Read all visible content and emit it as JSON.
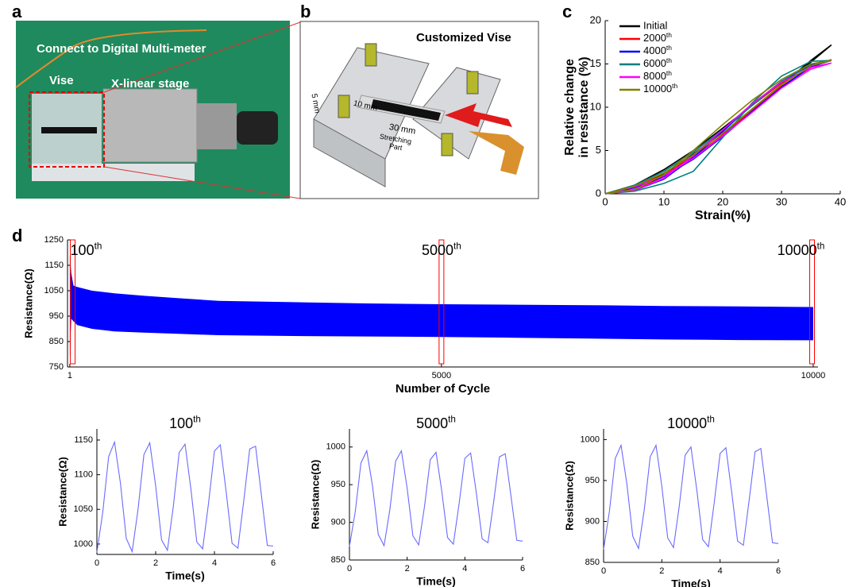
{
  "figure": {
    "panel_a": "a",
    "panel_b": "b",
    "panel_c": "c",
    "panel_d": "d",
    "photo_caption": "Connect to Digital Multi-meter",
    "vise": "Vise",
    "stage": "X-linear stage",
    "vise_title": "Customized Vise",
    "dim_5": "5 mm",
    "dim_10": "10 mm",
    "dim_30": "30 mm",
    "stretch_1": "Stretching",
    "stretch_2": "Part"
  },
  "chart_data": [
    {
      "type": "line",
      "xlabel": "Strain(%)",
      "ylabel": [
        "Relative change",
        "in resistance (%)"
      ],
      "x": [
        0,
        5,
        10,
        15,
        20,
        25,
        30,
        35,
        38.5,
        35,
        30,
        25,
        20,
        15,
        10,
        5,
        0
      ],
      "xlim": [
        0,
        40
      ],
      "xticks": [
        0,
        10,
        20,
        30,
        40
      ],
      "ylim": [
        0,
        20
      ],
      "yticks": [
        0,
        5,
        10,
        15,
        20
      ],
      "legend": "top-left",
      "series": [
        {
          "name": "Initial",
          "color": "#000000",
          "values": [
            0,
            0.7,
            2.3,
            4.6,
            7.0,
            9.8,
            12.6,
            15.4,
            17.2,
            15.2,
            12.8,
            10.2,
            7.6,
            5.0,
            2.8,
            1.0,
            0
          ]
        },
        {
          "name": "2000th",
          "color": "#ff0000",
          "values": [
            0,
            0.5,
            2.0,
            4.5,
            7.3,
            10.2,
            12.8,
            14.6,
            15.5,
            14.6,
            12.4,
            9.6,
            6.8,
            4.2,
            2.2,
            0.8,
            0
          ]
        },
        {
          "name": "4000th",
          "color": "#0000ff",
          "values": [
            0,
            0.4,
            1.7,
            4.2,
            7.2,
            10.3,
            13.0,
            14.9,
            15.4,
            14.7,
            12.3,
            9.5,
            6.6,
            4.0,
            2.0,
            0.7,
            0
          ]
        },
        {
          "name": "6000th",
          "color": "#008080",
          "values": [
            0,
            0.3,
            1.2,
            2.6,
            6.5,
            10.5,
            13.6,
            15.3,
            15.4,
            15.0,
            13.0,
            10.2,
            7.4,
            4.8,
            2.6,
            1.0,
            0
          ]
        },
        {
          "name": "8000th",
          "color": "#ff00ff",
          "values": [
            0,
            0.4,
            1.8,
            4.4,
            7.4,
            10.4,
            12.9,
            14.6,
            15.1,
            14.4,
            12.2,
            9.4,
            6.7,
            4.1,
            2.1,
            0.8,
            0
          ]
        },
        {
          "name": "10000th",
          "color": "#808000",
          "values": [
            0,
            0.5,
            2.2,
            5.0,
            8.0,
            10.8,
            13.2,
            15.0,
            15.4,
            14.8,
            12.6,
            9.8,
            7.0,
            4.5,
            2.4,
            0.9,
            0
          ]
        }
      ]
    },
    {
      "type": "band",
      "xlabel": "Number of Cycle",
      "ylabel": "Resistance(Ω)",
      "color": "#0000ff",
      "x": [
        1,
        20,
        50,
        100,
        300,
        600,
        1000,
        1500,
        2000,
        3000,
        4000,
        5000,
        6000,
        7000,
        8000,
        9000,
        10000
      ],
      "high": [
        1190,
        1120,
        1070,
        1065,
        1050,
        1040,
        1030,
        1020,
        1010,
        1005,
        1000,
        997,
        995,
        993,
        990,
        988,
        986
      ],
      "low": [
        790,
        940,
        930,
        915,
        900,
        890,
        885,
        880,
        875,
        872,
        870,
        868,
        865,
        862,
        858,
        856,
        855
      ],
      "xlim": [
        -30,
        10065
      ],
      "xticks": [
        1,
        5000,
        10000
      ],
      "ylim": [
        750,
        1250
      ],
      "yticks": [
        750,
        850,
        950,
        1050,
        1150,
        1250
      ],
      "annotations": [
        {
          "text": "100th",
          "x": 40
        },
        {
          "text": "5000th",
          "x": 5000
        },
        {
          "text": "10000th",
          "x": 9985
        }
      ],
      "annotation_color": "#ff0000"
    },
    {
      "type": "line",
      "title": "100th",
      "xlabel": "Time(s)",
      "ylabel": "Resistance(Ω)",
      "x": [
        0,
        0.2,
        0.4,
        0.6,
        0.8,
        1.0,
        1.2,
        1.4,
        1.6,
        1.8,
        2.0,
        2.2,
        2.4,
        2.6,
        2.8,
        3.0,
        3.2,
        3.4,
        3.6,
        3.8,
        4.0,
        4.2,
        4.4,
        4.6,
        4.8,
        5.0,
        5.2,
        5.4,
        5.6,
        5.8,
        6.0
      ],
      "xlim": [
        0,
        6
      ],
      "xticks": [
        0,
        2,
        4,
        6
      ],
      "ylim": [
        985,
        1166
      ],
      "yticks": [
        1000,
        1050,
        1100,
        1150
      ],
      "series": [
        {
          "color": "#6a6aff",
          "values": [
            988,
            1046,
            1126,
            1147,
            1088,
            1008,
            989,
            1050,
            1129,
            1146,
            1084,
            1006,
            991,
            1054,
            1132,
            1144,
            1079,
            1003,
            993,
            1059,
            1134,
            1143,
            1075,
            1001,
            994,
            1063,
            1137,
            1141,
            1070,
            998,
            997
          ]
        }
      ]
    },
    {
      "type": "line",
      "title": "5000th",
      "xlabel": "Time(s)",
      "ylabel": "Resistance(Ω)",
      "x": [
        0,
        0.2,
        0.4,
        0.6,
        0.8,
        1.0,
        1.2,
        1.4,
        1.6,
        1.8,
        2.0,
        2.2,
        2.4,
        2.6,
        2.8,
        3.0,
        3.2,
        3.4,
        3.6,
        3.8,
        4.0,
        4.2,
        4.4,
        4.6,
        4.8,
        5.0,
        5.2,
        5.4,
        5.6,
        5.8,
        6.0
      ],
      "xlim": [
        0,
        6
      ],
      "xticks": [
        0,
        2,
        4,
        6
      ],
      "ylim": [
        850,
        1024
      ],
      "yticks": [
        850,
        900,
        950,
        1000
      ],
      "series": [
        {
          "color": "#6a6aff",
          "values": [
            868,
            914,
            979,
            995,
            948,
            884,
            869,
            917,
            981,
            995,
            945,
            882,
            870,
            921,
            983,
            993,
            941,
            880,
            871,
            925,
            985,
            992,
            938,
            878,
            873,
            928,
            987,
            991,
            934,
            876,
            875
          ]
        }
      ]
    },
    {
      "type": "line",
      "title": "10000th",
      "xlabel": "Time(s)",
      "ylabel": "Resistance(Ω)",
      "x": [
        0,
        0.2,
        0.4,
        0.6,
        0.8,
        1.0,
        1.2,
        1.4,
        1.6,
        1.8,
        2.0,
        2.2,
        2.4,
        2.6,
        2.8,
        3.0,
        3.2,
        3.4,
        3.6,
        3.8,
        4.0,
        4.2,
        4.4,
        4.6,
        4.8,
        5.0,
        5.2,
        5.4,
        5.6,
        5.8,
        6.0
      ],
      "xlim": [
        0,
        6
      ],
      "xticks": [
        0,
        2,
        4,
        6
      ],
      "ylim": [
        850,
        1013
      ],
      "yticks": [
        850,
        900,
        950,
        1000
      ],
      "series": [
        {
          "color": "#6a6aff",
          "values": [
            866,
            912,
            977,
            993,
            946,
            882,
            867,
            915,
            979,
            993,
            943,
            880,
            868,
            919,
            981,
            991,
            939,
            878,
            869,
            923,
            983,
            990,
            936,
            876,
            871,
            926,
            985,
            989,
            932,
            874,
            873
          ]
        }
      ]
    }
  ]
}
